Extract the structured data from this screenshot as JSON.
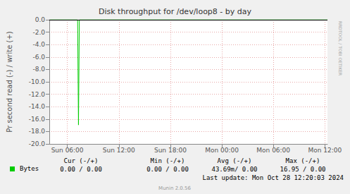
{
  "chart_data": {
    "type": "line",
    "title": "Disk throughput for /dev/loop8 - by day",
    "y_label": "Pr second read (-) / write (+)",
    "x": [
      4.0,
      7.2,
      7.3,
      7.4,
      36.3
    ],
    "series": [
      {
        "name": "Bytes",
        "color": "#00cc00",
        "values": [
          0,
          0,
          -16.95,
          0,
          0
        ]
      }
    ],
    "xlim": [
      3.9,
      36.3
    ],
    "xticks": [
      {
        "value": 6,
        "label": "Sun 06:00"
      },
      {
        "value": 12,
        "label": "Sun 12:00"
      },
      {
        "value": 18,
        "label": "Sun 18:00"
      },
      {
        "value": 24,
        "label": "Mon 00:00"
      },
      {
        "value": 30,
        "label": "Mon 06:00"
      },
      {
        "value": 36,
        "label": "Mon 12:00"
      }
    ],
    "ylim": [
      -20,
      0
    ],
    "yticks": [
      {
        "value": -20,
        "label": "-20.0"
      },
      {
        "value": -18,
        "label": "-18.0"
      },
      {
        "value": -16,
        "label": "-16.0"
      },
      {
        "value": -14,
        "label": "-14.0"
      },
      {
        "value": -12,
        "label": "-12.0"
      },
      {
        "value": -10,
        "label": "-10.0"
      },
      {
        "value": -8,
        "label": "-8.0"
      },
      {
        "value": -6,
        "label": "-6.0"
      },
      {
        "value": -4,
        "label": "-4.0"
      },
      {
        "value": -2,
        "label": "-2.0"
      },
      {
        "value": 0,
        "label": "0.0"
      }
    ],
    "grid": true,
    "annotations": {
      "legend_columns": [
        "Cur (-/+)",
        "Min (-/+)",
        "Avg (-/+)",
        "Max (-/+)"
      ],
      "legend_values": [
        "0.00 / 0.00",
        "0.00 / 0.00",
        "43.69m/ 0.00",
        "16.95 / 0.00"
      ],
      "footer": "Last update: Mon Oct 28 12:20:03 2024",
      "credit": "Munin 2.0.56",
      "watermark": "RRDTOOL / TOBI OETIKER"
    }
  }
}
